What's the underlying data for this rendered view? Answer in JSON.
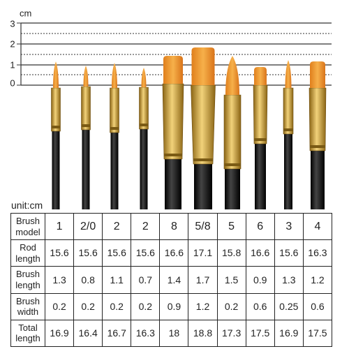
{
  "ruler": {
    "unit": "cm",
    "labels": [
      "3",
      "2",
      "1",
      "0"
    ]
  },
  "unit_note": "unit:cm",
  "table": {
    "rows": [
      [
        "Brush model",
        "1",
        "2/0",
        "2",
        "2",
        "8",
        "5/8",
        "5",
        "6",
        "3",
        "4"
      ],
      [
        "Rod length",
        "15.6",
        "15.6",
        "15.6",
        "15.6",
        "16.6",
        "17.1",
        "15.8",
        "16.6",
        "15.6",
        "16.3"
      ],
      [
        "Brush length",
        "1.3",
        "0.8",
        "1.1",
        "0.7",
        "1.4",
        "1.7",
        "1.5",
        "0.9",
        "1.3",
        "1.2"
      ],
      [
        "Brush width",
        "0.2",
        "0.2",
        "0.2",
        "0.2",
        "0.9",
        "1.2",
        "0.2",
        "0.6",
        "0.25",
        "0.6"
      ],
      [
        "Total length",
        "16.9",
        "16.4",
        "16.7",
        "16.3",
        "18",
        "18.8",
        "17.3",
        "17.5",
        "16.9",
        "17.5"
      ]
    ]
  }
}
